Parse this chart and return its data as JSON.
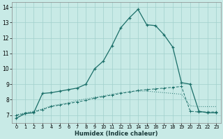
{
  "title": "",
  "xlabel": "Humidex (Indice chaleur)",
  "ylabel": "",
  "background_color": "#c8eae6",
  "grid_color": "#a0d0cc",
  "line_color": "#1a6e68",
  "xlim": [
    -0.5,
    23.5
  ],
  "ylim": [
    6.5,
    14.3
  ],
  "xticks": [
    0,
    1,
    2,
    3,
    4,
    5,
    6,
    7,
    8,
    9,
    10,
    11,
    12,
    13,
    14,
    15,
    16,
    17,
    18,
    19,
    20,
    21,
    22,
    23
  ],
  "yticks": [
    7,
    8,
    9,
    10,
    11,
    12,
    13,
    14
  ],
  "curve1_x": [
    0,
    1,
    2,
    3,
    4,
    5,
    6,
    7,
    8,
    9,
    10,
    11,
    12,
    13,
    14,
    15,
    16,
    17,
    18,
    19,
    20,
    21,
    22,
    23
  ],
  "curve1_y": [
    6.8,
    7.1,
    7.15,
    8.4,
    8.45,
    8.55,
    8.65,
    8.75,
    9.0,
    10.0,
    10.5,
    11.5,
    12.65,
    13.3,
    13.85,
    12.85,
    12.8,
    12.2,
    11.4,
    9.1,
    9.0,
    7.25,
    7.15,
    7.15
  ],
  "curve2_x": [
    0,
    1,
    2,
    3,
    4,
    5,
    6,
    7,
    8,
    9,
    10,
    11,
    12,
    13,
    14,
    15,
    16,
    17,
    18,
    19,
    20,
    21,
    22,
    23
  ],
  "curve2_y": [
    7.0,
    7.1,
    7.2,
    7.35,
    7.55,
    7.65,
    7.75,
    7.85,
    7.95,
    8.1,
    8.2,
    8.3,
    8.4,
    8.5,
    8.6,
    8.65,
    8.7,
    8.75,
    8.8,
    8.85,
    7.25,
    7.2,
    7.2,
    7.2
  ],
  "curve3_x": [
    0,
    1,
    2,
    3,
    4,
    5,
    6,
    7,
    8,
    9,
    10,
    11,
    12,
    13,
    14,
    15,
    16,
    17,
    18,
    19,
    20,
    21,
    22,
    23
  ],
  "curve3_y": [
    7.0,
    7.15,
    7.25,
    7.4,
    7.6,
    7.7,
    7.8,
    7.95,
    8.05,
    8.15,
    8.25,
    8.35,
    8.45,
    8.5,
    8.55,
    8.55,
    8.5,
    8.45,
    8.4,
    8.35,
    7.6,
    7.55,
    7.55,
    7.55
  ]
}
